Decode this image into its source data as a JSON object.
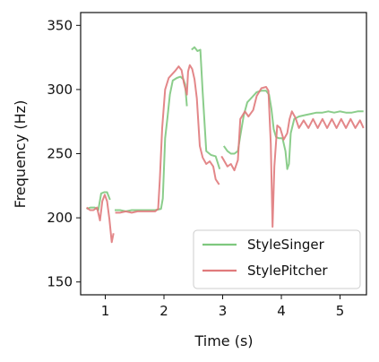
{
  "chart_data": {
    "type": "line",
    "xlabel": "Time (s)",
    "ylabel": "Frequency (Hz)",
    "xlim": [
      0.58,
      5.45
    ],
    "ylim": [
      140,
      360
    ],
    "xticks": [
      1,
      2,
      3,
      4,
      5
    ],
    "yticks": [
      150,
      200,
      250,
      300,
      350
    ],
    "grid": false,
    "legend_position": "lower-right",
    "series": [
      {
        "name": "StyleSinger",
        "color": "#7ec87e",
        "segments": [
          [
            [
              0.68,
              207
            ],
            [
              0.75,
              208
            ],
            [
              0.82,
              208
            ],
            [
              0.88,
              206
            ],
            [
              0.93,
              219
            ],
            [
              0.98,
              220
            ],
            [
              1.03,
              220
            ],
            [
              1.08,
              214
            ]
          ],
          [
            [
              1.16,
              206
            ],
            [
              1.25,
              206
            ],
            [
              1.35,
              205
            ],
            [
              1.45,
              206
            ],
            [
              1.55,
              206
            ],
            [
              1.65,
              206
            ],
            [
              1.75,
              206
            ],
            [
              1.85,
              206
            ],
            [
              1.95,
              207
            ],
            [
              1.98,
              215
            ],
            [
              2.02,
              262
            ],
            [
              2.06,
              278
            ],
            [
              2.1,
              296
            ],
            [
              2.15,
              307
            ],
            [
              2.22,
              309
            ],
            [
              2.28,
              310
            ],
            [
              2.33,
              308
            ],
            [
              2.36,
              304
            ],
            [
              2.39,
              287
            ]
          ],
          [
            [
              2.47,
              331
            ],
            [
              2.52,
              333
            ],
            [
              2.57,
              330
            ],
            [
              2.62,
              331
            ],
            [
              2.66,
              298
            ],
            [
              2.72,
              252
            ],
            [
              2.8,
              249
            ],
            [
              2.88,
              248
            ],
            [
              2.95,
              238
            ]
          ],
          [
            [
              3.02,
              256
            ],
            [
              3.08,
              252
            ],
            [
              3.14,
              250
            ],
            [
              3.2,
              250
            ],
            [
              3.26,
              252
            ],
            [
              3.3,
              264
            ],
            [
              3.36,
              280
            ],
            [
              3.42,
              290
            ],
            [
              3.5,
              294
            ],
            [
              3.58,
              298
            ],
            [
              3.66,
              299
            ],
            [
              3.74,
              299
            ],
            [
              3.79,
              296
            ],
            [
              3.83,
              285
            ],
            [
              3.87,
              269
            ],
            [
              3.91,
              263
            ],
            [
              3.96,
              262
            ],
            [
              4.02,
              262
            ],
            [
              4.07,
              252
            ],
            [
              4.1,
              238
            ],
            [
              4.13,
              242
            ],
            [
              4.16,
              266
            ],
            [
              4.22,
              277
            ],
            [
              4.3,
              279
            ],
            [
              4.4,
              280
            ],
            [
              4.5,
              281
            ],
            [
              4.6,
              282
            ],
            [
              4.7,
              282
            ],
            [
              4.8,
              283
            ],
            [
              4.9,
              282
            ],
            [
              5.0,
              283
            ],
            [
              5.1,
              282
            ],
            [
              5.2,
              282
            ],
            [
              5.3,
              283
            ],
            [
              5.4,
              283
            ]
          ]
        ]
      },
      {
        "name": "StylePitcher",
        "color": "#e07a7c",
        "segments": [
          [
            [
              0.68,
              208
            ],
            [
              0.74,
              206
            ],
            [
              0.8,
              206
            ],
            [
              0.86,
              208
            ],
            [
              0.91,
              198
            ],
            [
              0.95,
              213
            ],
            [
              0.99,
              218
            ],
            [
              1.03,
              213
            ],
            [
              1.07,
              199
            ],
            [
              1.11,
              181
            ],
            [
              1.14,
              188
            ]
          ],
          [
            [
              1.17,
              204
            ],
            [
              1.25,
              204
            ],
            [
              1.35,
              205
            ],
            [
              1.45,
              204
            ],
            [
              1.55,
              205
            ],
            [
              1.65,
              205
            ],
            [
              1.75,
              205
            ],
            [
              1.85,
              205
            ],
            [
              1.9,
              207
            ],
            [
              1.93,
              230
            ],
            [
              1.97,
              270
            ],
            [
              2.02,
              300
            ],
            [
              2.08,
              309
            ],
            [
              2.14,
              312
            ],
            [
              2.2,
              315
            ],
            [
              2.25,
              318
            ],
            [
              2.3,
              315
            ],
            [
              2.34,
              305
            ],
            [
              2.39,
              296
            ],
            [
              2.41,
              314
            ],
            [
              2.44,
              319
            ],
            [
              2.48,
              316
            ],
            [
              2.52,
              308
            ],
            [
              2.56,
              293
            ],
            [
              2.61,
              256
            ],
            [
              2.66,
              247
            ],
            [
              2.72,
              242
            ],
            [
              2.78,
              244
            ],
            [
              2.84,
              240
            ],
            [
              2.88,
              230
            ],
            [
              2.94,
              226
            ]
          ],
          [
            [
              2.98,
              248
            ],
            [
              3.02,
              245
            ],
            [
              3.08,
              240
            ],
            [
              3.14,
              242
            ],
            [
              3.2,
              237
            ],
            [
              3.26,
              245
            ],
            [
              3.3,
              277
            ],
            [
              3.38,
              283
            ],
            [
              3.44,
              279
            ],
            [
              3.52,
              284
            ],
            [
              3.58,
              295
            ],
            [
              3.66,
              301
            ],
            [
              3.74,
              302
            ],
            [
              3.78,
              299
            ],
            [
              3.82,
              258
            ],
            [
              3.85,
              193
            ],
            [
              3.88,
              240
            ],
            [
              3.93,
              272
            ],
            [
              3.98,
              270
            ],
            [
              4.04,
              261
            ],
            [
              4.1,
              266
            ],
            [
              4.14,
              277
            ],
            [
              4.18,
              283
            ],
            [
              4.24,
              278
            ],
            [
              4.3,
              270
            ],
            [
              4.38,
              276
            ],
            [
              4.46,
              270
            ],
            [
              4.54,
              277
            ],
            [
              4.62,
              270
            ],
            [
              4.7,
              277
            ],
            [
              4.78,
              270
            ],
            [
              4.86,
              277
            ],
            [
              4.94,
              270
            ],
            [
              5.02,
              277
            ],
            [
              5.1,
              270
            ],
            [
              5.18,
              277
            ],
            [
              5.26,
              270
            ],
            [
              5.34,
              276
            ],
            [
              5.4,
              270
            ]
          ]
        ]
      }
    ]
  }
}
